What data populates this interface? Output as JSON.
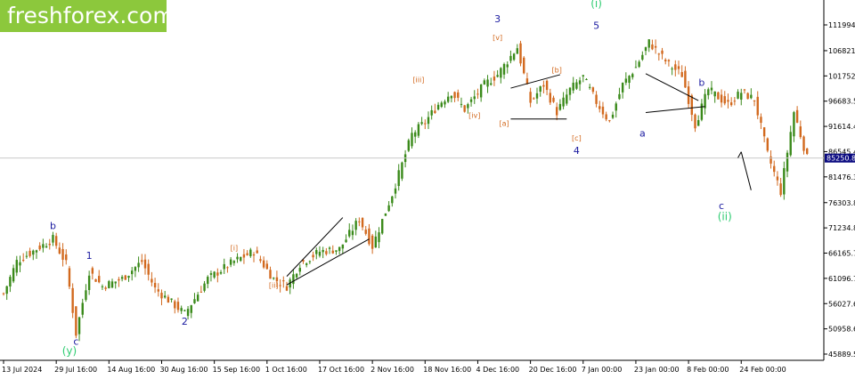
{
  "brand": {
    "logo_text": "freshforex.com",
    "color": "#8cc83c"
  },
  "colors": {
    "bull_candle": "#3a8a1a",
    "bear_candle": "#d2691e",
    "wave_major": "#1a1aa0",
    "wave_minor": "#d2691e",
    "wave_cycle": "#2ecc71",
    "price_tag": "#0a0a80",
    "grid_line": "#d8d8d8",
    "trendline": "#000000"
  },
  "chart_data": {
    "type": "candlestick",
    "symbol": "",
    "current_price": 85250.84,
    "ylim": [
      45000,
      115000
    ],
    "y_ticks": [
      "111994.1",
      "106821.6",
      "101752.5",
      "96683.50",
      "91614.45",
      "86545.40",
      "81476.35",
      "76303.85",
      "71234.80",
      "66165.75",
      "61096.70",
      "56027.65",
      "50958.60",
      "45889.55"
    ],
    "y_tick_values": [
      111994.1,
      106821.6,
      101752.5,
      96683.5,
      91614.45,
      86545.4,
      81476.35,
      76303.85,
      71234.8,
      66165.75,
      61096.7,
      56027.65,
      50958.6,
      45889.55
    ],
    "x_ticks": [
      "13 Jul 2024",
      "29 Jul 16:00",
      "14 Aug 16:00",
      "30 Aug 16:00",
      "15 Sep 16:00",
      "1 Oct 16:00",
      "17 Oct 16:00",
      "2 Nov 16:00",
      "18 Nov 16:00",
      "4 Dec 16:00",
      "20 Dec 16:00",
      "7 Jan 00:00",
      "23 Jan 00:00",
      "8 Feb 00:00",
      "24 Feb 00:00"
    ],
    "x_tick_index": [
      0,
      16,
      32,
      48,
      64,
      80,
      96,
      112,
      128,
      144,
      160,
      176,
      192,
      208,
      224
    ],
    "series_close": [
      {
        "i": 0,
        "v": 58000
      },
      {
        "i": 4,
        "v": 64500
      },
      {
        "i": 10,
        "v": 67000
      },
      {
        "i": 15,
        "v": 69000
      },
      {
        "i": 19,
        "v": 64000
      },
      {
        "i": 22,
        "v": 50000
      },
      {
        "i": 26,
        "v": 62500
      },
      {
        "i": 30,
        "v": 59500
      },
      {
        "i": 36,
        "v": 61000
      },
      {
        "i": 42,
        "v": 64500
      },
      {
        "i": 46,
        "v": 59000
      },
      {
        "i": 55,
        "v": 54000
      },
      {
        "i": 62,
        "v": 61000
      },
      {
        "i": 70,
        "v": 64500
      },
      {
        "i": 76,
        "v": 66500
      },
      {
        "i": 82,
        "v": 61000
      },
      {
        "i": 86,
        "v": 59500
      },
      {
        "i": 90,
        "v": 64000
      },
      {
        "i": 96,
        "v": 66500
      },
      {
        "i": 102,
        "v": 67000
      },
      {
        "i": 108,
        "v": 73000
      },
      {
        "i": 112,
        "v": 67500
      },
      {
        "i": 118,
        "v": 78000
      },
      {
        "i": 124,
        "v": 90000
      },
      {
        "i": 128,
        "v": 92500
      },
      {
        "i": 132,
        "v": 96000
      },
      {
        "i": 136,
        "v": 98500
      },
      {
        "i": 140,
        "v": 95000
      },
      {
        "i": 146,
        "v": 100000
      },
      {
        "i": 150,
        "v": 102000
      },
      {
        "i": 156,
        "v": 107500
      },
      {
        "i": 160,
        "v": 96500
      },
      {
        "i": 164,
        "v": 100000
      },
      {
        "i": 168,
        "v": 94500
      },
      {
        "i": 172,
        "v": 99000
      },
      {
        "i": 176,
        "v": 101500
      },
      {
        "i": 180,
        "v": 96500
      },
      {
        "i": 184,
        "v": 92500
      },
      {
        "i": 188,
        "v": 100000
      },
      {
        "i": 192,
        "v": 103500
      },
      {
        "i": 196,
        "v": 108500
      },
      {
        "i": 202,
        "v": 104000
      },
      {
        "i": 206,
        "v": 102000
      },
      {
        "i": 210,
        "v": 92000
      },
      {
        "i": 214,
        "v": 99000
      },
      {
        "i": 220,
        "v": 96000
      },
      {
        "i": 224,
        "v": 98500
      },
      {
        "i": 228,
        "v": 97000
      },
      {
        "i": 232,
        "v": 86000
      },
      {
        "i": 236,
        "v": 78500
      },
      {
        "i": 240,
        "v": 94500
      },
      {
        "i": 244,
        "v": 85250
      }
    ],
    "wave_labels": [
      {
        "text": "(y)",
        "i": 20,
        "v": 45800,
        "level": "cycle"
      },
      {
        "text": "c",
        "i": 22,
        "v": 47800,
        "level": "major"
      },
      {
        "text": "b",
        "i": 15,
        "v": 71000,
        "level": "major"
      },
      {
        "text": "1",
        "i": 26,
        "v": 65000,
        "level": "major"
      },
      {
        "text": "2",
        "i": 55,
        "v": 51800,
        "level": "major"
      },
      {
        "text": "[i]",
        "i": 70,
        "v": 66700,
        "level": "minor"
      },
      {
        "text": "[ii]",
        "i": 82,
        "v": 59200,
        "level": "minor"
      },
      {
        "text": "[iii]",
        "i": 126,
        "v": 100500,
        "level": "minor"
      },
      {
        "text": "[iv]",
        "i": 143,
        "v": 93300,
        "level": "minor"
      },
      {
        "text": "3",
        "i": 150,
        "v": 112500,
        "level": "major"
      },
      {
        "text": "[v]",
        "i": 150,
        "v": 109000,
        "level": "minor"
      },
      {
        "text": "[a]",
        "i": 152,
        "v": 91700,
        "level": "minor"
      },
      {
        "text": "[b]",
        "i": 168,
        "v": 102400,
        "level": "minor"
      },
      {
        "text": "[c]",
        "i": 174,
        "v": 88800,
        "level": "minor"
      },
      {
        "text": "4",
        "i": 174,
        "v": 86100,
        "level": "major"
      },
      {
        "text": "(i)",
        "i": 180,
        "v": 115600,
        "level": "cycle"
      },
      {
        "text": "5",
        "i": 180,
        "v": 111200,
        "level": "major"
      },
      {
        "text": "a",
        "i": 194,
        "v": 89600,
        "level": "major"
      },
      {
        "text": "b",
        "i": 212,
        "v": 99800,
        "level": "major"
      },
      {
        "text": "c",
        "i": 218,
        "v": 75000,
        "level": "major"
      },
      {
        "text": "(ii)",
        "i": 219,
        "v": 72800,
        "level": "cycle"
      }
    ],
    "trendlines": [
      {
        "from": {
          "i": 86,
          "v": 61500
        },
        "to": {
          "i": 103,
          "v": 73300
        }
      },
      {
        "from": {
          "i": 86,
          "v": 59800
        },
        "to": {
          "i": 111,
          "v": 69000
        }
      },
      {
        "from": {
          "i": 154,
          "v": 99300
        },
        "to": {
          "i": 169,
          "v": 102000
        }
      },
      {
        "from": {
          "i": 154,
          "v": 93100
        },
        "to": {
          "i": 171,
          "v": 93100
        }
      },
      {
        "from": {
          "i": 195,
          "v": 102200
        },
        "to": {
          "i": 211,
          "v": 96800
        }
      },
      {
        "from": {
          "i": 195,
          "v": 94400
        },
        "to": {
          "i": 213,
          "v": 95600
        }
      },
      {
        "from": {
          "i": 224,
          "v": 86500
        },
        "to": {
          "i": 227,
          "v": 78800
        }
      },
      {
        "from": {
          "i": 223,
          "v": 85300
        },
        "to": {
          "i": 224,
          "v": 86500
        }
      }
    ],
    "grid": false,
    "price_line": true
  }
}
